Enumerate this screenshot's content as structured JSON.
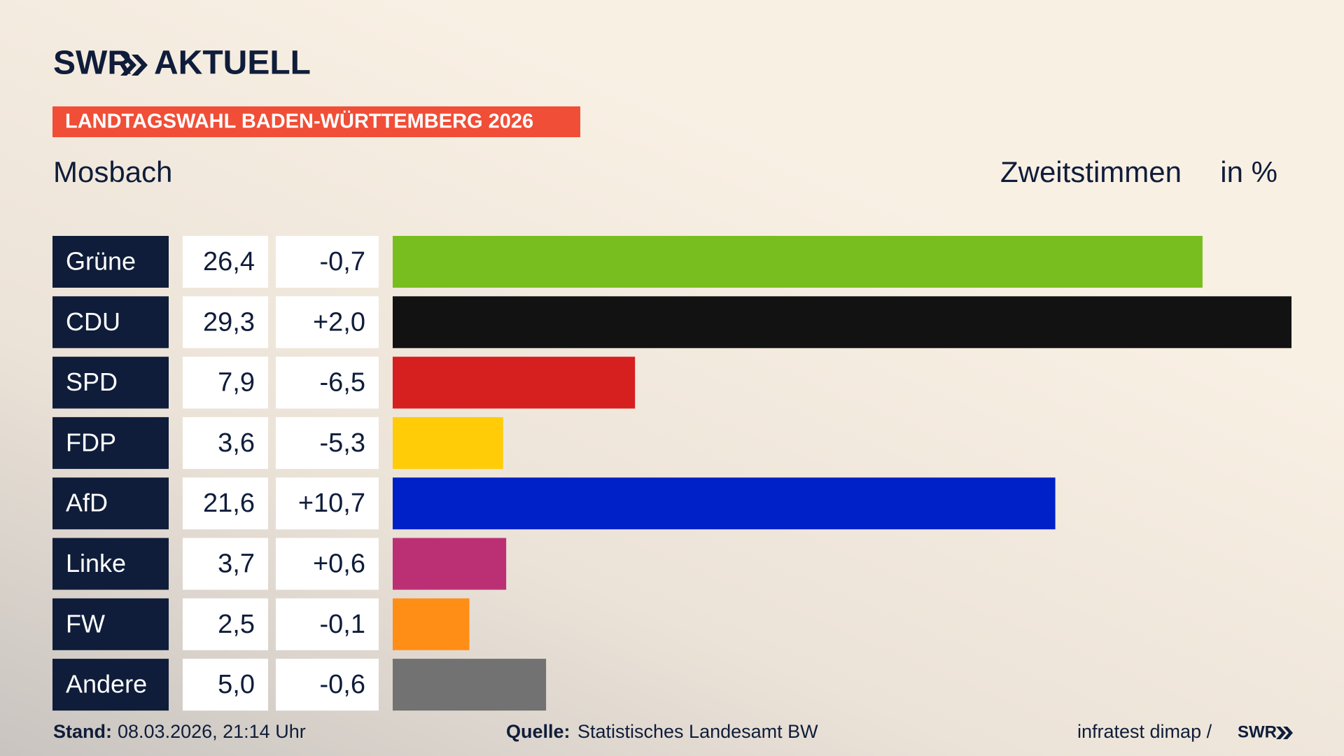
{
  "chart_data": {
    "type": "bar",
    "brand": "SWR",
    "brand_suffix": "AKTUELL",
    "banner": "LANDTAGSWAHL BADEN-WÜRTTEMBERG 2026",
    "title": "Mosbach",
    "subtitle": "Zweitstimmen",
    "unit": "in %",
    "categories": [
      "Grüne",
      "CDU",
      "SPD",
      "FDP",
      "AfD",
      "Linke",
      "FW",
      "Andere"
    ],
    "values": [
      26.4,
      29.3,
      7.9,
      3.6,
      21.6,
      3.7,
      2.5,
      5.0
    ],
    "value_labels": [
      "26,4",
      "29,3",
      "7,9",
      "3,6",
      "21,6",
      "3,7",
      "2,5",
      "5,0"
    ],
    "changes": [
      "-0,7",
      "+2,0",
      "-6,5",
      "-5,3",
      "+10,7",
      "+0,6",
      "-0,1",
      "-0,6"
    ],
    "colors": [
      "#78be1e",
      "#121212",
      "#d61f1f",
      "#ffcc07",
      "#0020c8",
      "#bb3075",
      "#ff8e17",
      "#727272"
    ],
    "xlim": [
      0,
      29.3
    ],
    "footer": {
      "stand_label": "Stand:",
      "stand": "08.03.2026, 21:14 Uhr",
      "source_label": "Quelle:",
      "source": "Statistisches Landesamt BW",
      "credit": "infratest dimap /",
      "credit_brand": "SWR"
    }
  }
}
